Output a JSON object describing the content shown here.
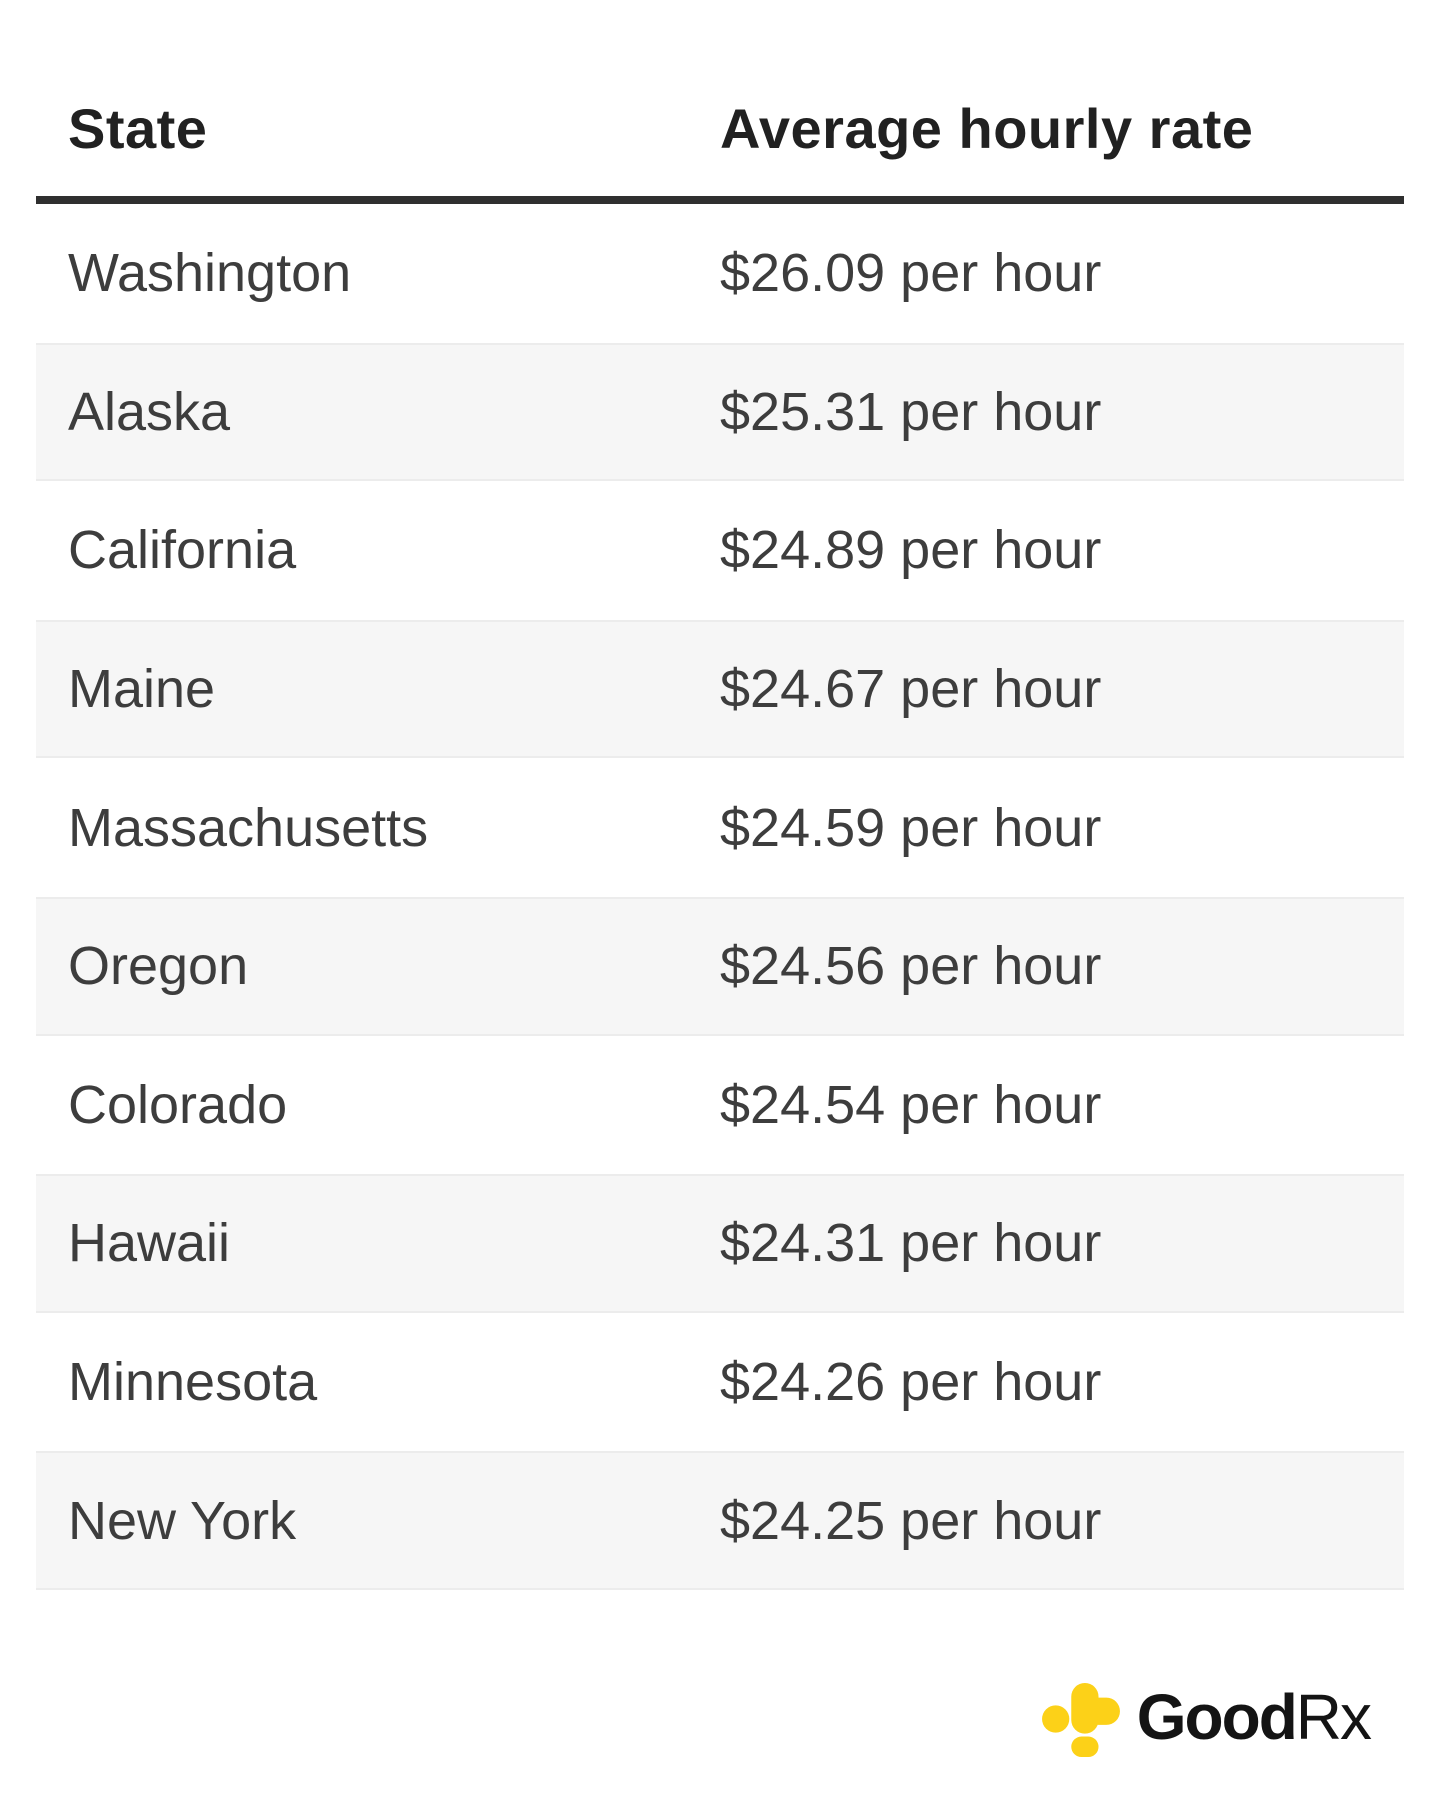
{
  "table": {
    "columns": [
      "State",
      "Average hourly rate"
    ],
    "rows": [
      {
        "state": "Washington",
        "rate": "$26.09 per hour"
      },
      {
        "state": "Alaska",
        "rate": "$25.31 per hour"
      },
      {
        "state": "California",
        "rate": "$24.89 per hour"
      },
      {
        "state": "Maine",
        "rate": "$24.67 per hour"
      },
      {
        "state": "Massachusetts",
        "rate": "$24.59 per hour"
      },
      {
        "state": "Oregon",
        "rate": "$24.56 per hour"
      },
      {
        "state": "Colorado",
        "rate": "$24.54 per hour"
      },
      {
        "state": "Hawaii",
        "rate": "$24.31 per hour"
      },
      {
        "state": "Minnesota",
        "rate": "$24.26 per hour"
      },
      {
        "state": "New York",
        "rate": "$24.25 per hour"
      }
    ]
  },
  "branding": {
    "wordmark_bold": "Good",
    "wordmark_regular": "Rx",
    "icon": "goodrx-cross-icon",
    "colors": {
      "logo_yellow": "#FCD118",
      "wordmark_black": "#141414"
    }
  },
  "style_colors": {
    "header_rule": "#2F2F2F",
    "header_text": "#212121",
    "body_text": "#3D3D3D",
    "alt_row_background": "#F6F6F6",
    "alt_row_border": "#ECECEC",
    "page_background": "#FFFFFF"
  },
  "chart_data": {
    "type": "table",
    "title": "",
    "columns": [
      "State",
      "Average hourly rate"
    ],
    "categories": [
      "Washington",
      "Alaska",
      "California",
      "Maine",
      "Massachusetts",
      "Oregon",
      "Colorado",
      "Hawaii",
      "Minnesota",
      "New York"
    ],
    "values": [
      26.09,
      25.31,
      24.89,
      24.67,
      24.59,
      24.56,
      24.54,
      24.31,
      24.26,
      24.25
    ],
    "unit": "USD per hour"
  }
}
